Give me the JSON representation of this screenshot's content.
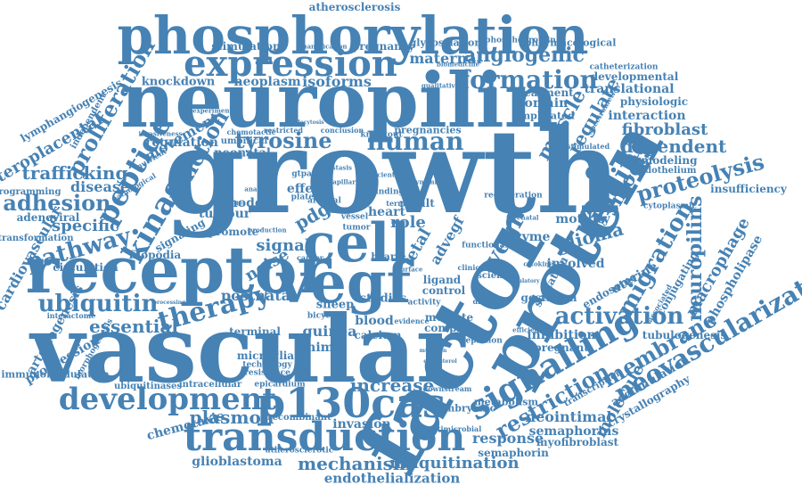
{
  "words": {
    "phosphorylation": "phosphorylation",
    "neuropilin": "neuropilin",
    "growth": "growth",
    "vascular": "vascular",
    "receptor": "receptor",
    "factor": "factor",
    "protein": "protein",
    "vegf": "vegf",
    "cell": "cell",
    "expression": "expression",
    "transduction": "transduction",
    "p130cas": "p130cas",
    "development": "development",
    "signalling": "signalling",
    "formation": "formation",
    "angiogenic": "angiogenic",
    "neovascularization": "neovascularization",
    "activation": "activation",
    "human": "human",
    "tyrosine": "tyrosine",
    "kinase": "kinase",
    "peptide": "peptide",
    "proliferation": "proliferation",
    "therapy": "therapy",
    "ubiquitin": "ubiquitin",
    "adhesion": "adhesion",
    "pathway": "pathway",
    "function": "function",
    "binding": "binding",
    "migration": "migration",
    "proteolysis": "proteolysis",
    "restriction": "restriction",
    "membrane": "membrane",
    "dependent": "dependent",
    "fibroblast": "fibroblast",
    "muscle": "muscle",
    "regulate": "regulate",
    "smooth": "smooth",
    "maternal": "maternal",
    "atherosclerosis": "atherosclerosis",
    "stimulation": "stimulation",
    "pregnancy": "pregnancy",
    "glycosylation": "glycosylation",
    "knockdown": "knockdown",
    "neoplasm": "neoplasm",
    "isoforms": "isoforms",
    "domain": "domain",
    "translational": "translational",
    "developmental": "developmental",
    "interaction": "interaction",
    "physiologic": "physiologic",
    "regulation": "regulation",
    "trafficking": "trafficking",
    "uteroplacental": "uteroplacental",
    "lymphangiogenesis": "lymphangiogenesis",
    "movement": "movement",
    "disease": "disease",
    "specific": "specific",
    "cardiovascular": "cardiovascular",
    "essential": "essential",
    "arteriogenesis": "arteriogenesis",
    "progression": "progression",
    "immunomodulation": "immunomodulation",
    "increase": "increase",
    "plasmon": "plasmon",
    "chemotaxis": "chemotaxis",
    "glioblastoma": "glioblastoma",
    "mechanism": "mechanism",
    "endothelialization": "endothelialization",
    "ubiquitination": "ubiquitination",
    "response": "response",
    "semaphorin": "semaphorin",
    "semaphorins": "semaphorins",
    "myofibroblast": "myofibroblast",
    "neointimal": "neointimal",
    "molecule": "molecule",
    "accumulation": "accumulation",
    "crystallography": "crystallography",
    "inhibition": "inhibition",
    "pregnant": "pregnant",
    "tubulogenesis": "tubulogenesis",
    "macrophage": "macrophage",
    "phospholipase": "phospholipase",
    "neuropilins": "neuropilins",
    "glioma": "glioma",
    "motility": "motility",
    "enzyme": "enzyme",
    "uterine": "uterine",
    "endosome": "endosome",
    "remodeling": "remodeling",
    "endothelium": "endothelium",
    "insufficiency": "insufficiency",
    "postnatal": "postnatal",
    "guinea": "guinea",
    "animal": "animal",
    "blood": "blood",
    "calcium": "calcium",
    "microglia": "microglia",
    "signal": "signal",
    "noise": "noise",
    "pdgf": "pdgf",
    "role": "role",
    "fetal": "fetal",
    "advegf": "advegf",
    "heart": "heart",
    "result": "result",
    "effect": "effect",
    "model": "model",
    "tumour": "tumour",
    "promote": "promote",
    "filopodia": "filopodia",
    "circulation": "circulation",
    "signaling": "signaling",
    "adenoviral": "adenoviral",
    "neonatal": "neonatal",
    "umbilical": "umbilical",
    "studies": "studies",
    "sheep": "sheep",
    "ligand": "ligand",
    "control": "control",
    "mediate": "mediate",
    "complex": "complex",
    "involved": "involved",
    "septation": "septation",
    "gestation": "gestation",
    "treatment": "treatment",
    "implicated": "implicated",
    "pregnancies": "pregnancies",
    "knockout": "knockout",
    "epicardium": "epicardium",
    "intracellular": "intracellular",
    "ubiquitinases": "ubiquitinases",
    "recombinant": "recombinant",
    "invasion": "invasion",
    "embryonic": "embryonic",
    "metabolism": "metabolism",
    "terminal": "terminal",
    "atherosclerotic": "atherosclerotic",
    "antimicrobial": "antimicrobial",
    "transformation": "transformation",
    "regeneration": "regeneration",
    "depletion": "depletion",
    "conjugating": "conjugating",
    "catheterization": "catheterization",
    "pharmacological": "pharmacological",
    "phosphoprotein": "phosphoprotein",
    "quantification": "quantification",
    "biomedicine": "biomedicine",
    "independent": "independent",
    "nutrient": "nutrient",
    "programming": "programming",
    "pathological": "pathological",
    "gtpase": "gtpase",
    "platelet": "platelet",
    "arterial": "arterial",
    "mutant": "mutant",
    "cytoplasmic": "cytoplasmic",
    "vessel": "vessel",
    "tumor": "tumor",
    "finding": "finding",
    "science": "science",
    "different": "different",
    "evidence": "evidence",
    "activity": "activity",
    "transcription": "transcription",
    "downstream": "downstream",
    "technology": "technology",
    "resistance": "resistance",
    "bicyclic": "bicyclic",
    "cancer": "cancer",
    "bcar": "bcar",
    "surface": "surface",
    "family": "family",
    "term": "term",
    "growth_small": "stimulated",
    "efficiency": "efficiency",
    "qualitative": "qualitative",
    "conclusion": "conclusion",
    "restricted": "restricted",
    "invasiveness": "invasiveness",
    "experimental": "experimental",
    "capillary": "capillary",
    "interactome": "interactome",
    "morphogenesis": "morphogenesis",
    "chemotactic": "chemotactic",
    "production": "production",
    "analysis": "analysis",
    "substrate": "substrate",
    "processing": "processing",
    "metastasis": "metastasis",
    "deficient": "deficient",
    "prenatal": "prenatal",
    "clinical": "clinical",
    "functional": "functional",
    "spectrometry": "spectrometry",
    "associated": "associated",
    "dynamic": "dynamic",
    "cytokines": "cytokines",
    "cholesterol": "cholesterol",
    "mutation": "mutation",
    "regulatory": "regulatory",
    "endocytosis": "endocytosis"
  },
  "colors": {
    "word": "#4682b4",
    "background": "#ffffff"
  }
}
